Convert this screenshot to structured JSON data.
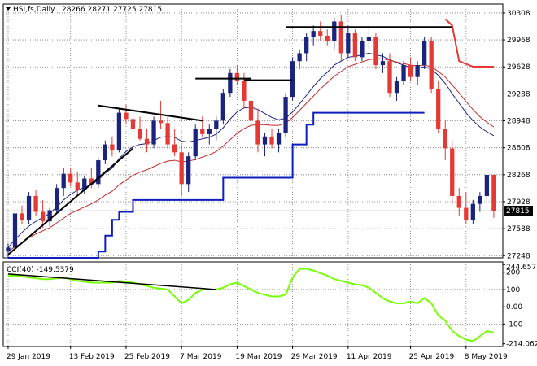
{
  "chart_data": [
    {
      "type": "candlestick",
      "title": "HSI,fs,Daily",
      "ohlc_label": "28266 28271 27725 27815",
      "current_price": "27815",
      "y_ticks": [
        "30308",
        "29968",
        "29628",
        "29288",
        "28948",
        "28608",
        "28268",
        "27928",
        "27588",
        "27248"
      ],
      "y_tick_values": [
        30308,
        29968,
        29628,
        29288,
        28948,
        28608,
        28268,
        27928,
        27588,
        27248
      ],
      "ylim": [
        27220,
        30420
      ],
      "x_ticks": [
        "29 Jan 2019",
        "13 Feb 2019",
        "25 Feb 2019",
        "7 Mar 2019",
        "19 Mar 2019",
        "29 Mar 2019",
        "11 Apr 2019",
        "25 Apr 2019",
        "8 May 2019"
      ],
      "x_tick_index": [
        0,
        9,
        17,
        25,
        33,
        41,
        49,
        58,
        66
      ],
      "up_color": "#1a237e",
      "down_color": "#e53935",
      "candles": [
        [
          27300,
          27400,
          27220,
          27350
        ],
        [
          27350,
          27850,
          27300,
          27780
        ],
        [
          27780,
          27880,
          27650,
          27700
        ],
        [
          27700,
          28050,
          27650,
          28000
        ],
        [
          28000,
          28080,
          27750,
          27800
        ],
        [
          27800,
          27950,
          27600,
          27680
        ],
        [
          27680,
          27850,
          27620,
          27820
        ],
        [
          27820,
          28150,
          27780,
          28100
        ],
        [
          28100,
          28350,
          28000,
          28280
        ],
        [
          28280,
          28360,
          28120,
          28170
        ],
        [
          28170,
          28300,
          28000,
          28080
        ],
        [
          28080,
          28250,
          28030,
          28220
        ],
        [
          28220,
          28350,
          28100,
          28150
        ],
        [
          28150,
          28480,
          28100,
          28450
        ],
        [
          28450,
          28700,
          28400,
          28650
        ],
        [
          28650,
          28750,
          28500,
          28580
        ],
        [
          28580,
          29100,
          28550,
          29050
        ],
        [
          29050,
          29150,
          28900,
          28970
        ],
        [
          28970,
          29050,
          28800,
          28850
        ],
        [
          28850,
          29000,
          28700,
          28720
        ],
        [
          28720,
          28850,
          28550,
          28650
        ],
        [
          28650,
          29000,
          28600,
          28950
        ],
        [
          28950,
          29200,
          28850,
          28920
        ],
        [
          28920,
          29000,
          28600,
          28650
        ],
        [
          28650,
          28850,
          28500,
          28550
        ],
        [
          28550,
          28650,
          28000,
          28150
        ],
        [
          28150,
          28550,
          28050,
          28500
        ],
        [
          28500,
          28900,
          28450,
          28850
        ],
        [
          28850,
          29000,
          28750,
          28780
        ],
        [
          28780,
          28900,
          28650,
          28850
        ],
        [
          28850,
          29000,
          28700,
          28950
        ],
        [
          28950,
          29350,
          28900,
          29300
        ],
        [
          29300,
          29600,
          29250,
          29550
        ],
        [
          29550,
          29650,
          29400,
          29450
        ],
        [
          29450,
          29550,
          29100,
          29200
        ],
        [
          29200,
          29350,
          28900,
          28950
        ],
        [
          28950,
          29100,
          28550,
          28650
        ],
        [
          28650,
          28800,
          28500,
          28750
        ],
        [
          28750,
          28850,
          28600,
          28650
        ],
        [
          28650,
          28850,
          28550,
          28800
        ],
        [
          28800,
          29300,
          28750,
          29250
        ],
        [
          29250,
          29750,
          29200,
          29700
        ],
        [
          29700,
          29850,
          29600,
          29800
        ],
        [
          29800,
          30050,
          29700,
          30000
        ],
        [
          30000,
          30150,
          29900,
          30080
        ],
        [
          30080,
          30200,
          29950,
          30020
        ],
        [
          30020,
          30100,
          29900,
          29950
        ],
        [
          29950,
          30250,
          29850,
          30200
        ],
        [
          30200,
          30280,
          29700,
          29800
        ],
        [
          29800,
          30150,
          29750,
          30050
        ],
        [
          30050,
          30100,
          29700,
          29750
        ],
        [
          29750,
          30000,
          29700,
          29950
        ],
        [
          29950,
          30150,
          29850,
          30000
        ],
        [
          30000,
          30050,
          29600,
          29650
        ],
        [
          29650,
          29800,
          29550,
          29700
        ],
        [
          29700,
          29800,
          29250,
          29300
        ],
        [
          29300,
          29500,
          29200,
          29450
        ],
        [
          29450,
          29700,
          29400,
          29650
        ],
        [
          29650,
          29750,
          29450,
          29500
        ],
        [
          29500,
          29700,
          29400,
          29650
        ],
        [
          29650,
          30000,
          29600,
          29950
        ],
        [
          29950,
          30000,
          29300,
          29350
        ],
        [
          29350,
          29450,
          28800,
          28850
        ],
        [
          28850,
          28950,
          28450,
          28600
        ],
        [
          28600,
          28700,
          27900,
          28000
        ],
        [
          28000,
          28100,
          27750,
          27850
        ],
        [
          27850,
          28050,
          27650,
          27700
        ],
        [
          27700,
          27950,
          27650,
          27900
        ],
        [
          27900,
          28050,
          27800,
          28000
        ],
        [
          28000,
          28300,
          27900,
          28266
        ],
        [
          28266,
          28271,
          27725,
          27815
        ]
      ],
      "overlays": [
        {
          "name": "fast MA",
          "color": "#1a237e",
          "values": [
            27350,
            27450,
            27540,
            27620,
            27680,
            27730,
            27780,
            27860,
            27950,
            28020,
            28070,
            28110,
            28140,
            28200,
            28290,
            28350,
            28470,
            28560,
            28620,
            28650,
            28660,
            28700,
            28740,
            28750,
            28740,
            28690,
            28680,
            28700,
            28720,
            28740,
            28780,
            28860,
            28970,
            29060,
            29110,
            29120,
            29090,
            29040,
            28990,
            28960,
            28980,
            29060,
            29160,
            29270,
            29380,
            29480,
            29560,
            29650,
            29700,
            29750,
            29760,
            29780,
            29800,
            29780,
            29760,
            29720,
            29680,
            29650,
            29620,
            29610,
            29630,
            29600,
            29520,
            29420,
            29290,
            29170,
            29050,
            28950,
            28870,
            28810,
            28760
          ]
        },
        {
          "name": "slow MA",
          "color": "#c62828",
          "values": [
            27300,
            27360,
            27410,
            27470,
            27520,
            27560,
            27600,
            27660,
            27720,
            27780,
            27820,
            27860,
            27900,
            27950,
            28010,
            28060,
            28140,
            28200,
            28260,
            28300,
            28330,
            28370,
            28410,
            28440,
            28450,
            28430,
            28440,
            28460,
            28490,
            28520,
            28560,
            28630,
            28710,
            28790,
            28850,
            28890,
            28900,
            28900,
            28890,
            28890,
            28920,
            28990,
            29080,
            29170,
            29260,
            29350,
            29430,
            29510,
            29570,
            29630,
            29660,
            29690,
            29720,
            29730,
            29730,
            29710,
            29690,
            29670,
            29650,
            29640,
            29650,
            29630,
            29570,
            29500,
            29400,
            29300,
            29190,
            29090,
            29000,
            28930,
            28870
          ]
        },
        {
          "name": "step support",
          "color": "#0d1fbf",
          "values": [
            27220,
            27220,
            27220,
            27220,
            27220,
            27220,
            27220,
            27220,
            27220,
            27220,
            27220,
            27220,
            27220,
            27300,
            27500,
            27700,
            27800,
            27800,
            27950,
            27950,
            27950,
            27950,
            27950,
            27950,
            27950,
            27950,
            27950,
            27950,
            27950,
            27950,
            27950,
            28230,
            28230,
            28230,
            28230,
            28230,
            28230,
            28230,
            28230,
            28230,
            28230,
            28650,
            28650,
            28900,
            29050,
            29050,
            29050,
            29050,
            29050,
            29050,
            29050,
            29050,
            29050,
            29050,
            29050,
            29050,
            29050,
            29050,
            29050,
            29050,
            29050,
            null,
            null,
            null,
            null,
            null,
            null,
            null,
            null,
            null,
            null
          ]
        }
      ],
      "trendlines": [
        {
          "color": "#000000",
          "points": [
            [
              0,
              27260
            ],
            [
              18,
              28600
            ]
          ]
        },
        {
          "color": "#000000",
          "points": [
            [
              13,
              29140
            ],
            [
              28,
              28950
            ]
          ]
        },
        {
          "color": "#000000",
          "points": [
            [
              27,
              29480
            ],
            [
              35,
              29480
            ]
          ]
        },
        {
          "color": "#000000",
          "points": [
            [
              34,
              29460
            ],
            [
              41,
              29460
            ]
          ]
        },
        {
          "color": "#000000",
          "points": [
            [
              40,
              30130
            ],
            [
              64,
              30130
            ]
          ]
        }
      ],
      "resistance_line": {
        "color": "#e53935",
        "points": [
          [
            63,
            30230
          ],
          [
            64,
            30150
          ],
          [
            65,
            29700
          ],
          [
            67,
            29630
          ],
          [
            70,
            29630
          ]
        ]
      }
    },
    {
      "type": "line",
      "title": "CCI(40) -149.5379",
      "y_ticks": [
        "244.6572",
        "200",
        "100",
        "0.00",
        "-100",
        "-214.0621"
      ],
      "y_tick_values": [
        244.6572,
        200,
        100,
        0,
        -100,
        -214.0621
      ],
      "ylim": [
        -230,
        260
      ],
      "series": [
        {
          "color": "#76ff03",
          "values": [
            180,
            180,
            175,
            170,
            165,
            160,
            160,
            165,
            170,
            160,
            150,
            145,
            140,
            140,
            140,
            140,
            150,
            145,
            140,
            130,
            120,
            110,
            105,
            100,
            60,
            20,
            40,
            80,
            100,
            100,
            100,
            110,
            130,
            140,
            120,
            100,
            80,
            70,
            60,
            60,
            70,
            170,
            220,
            220,
            210,
            195,
            180,
            160,
            150,
            140,
            130,
            125,
            110,
            80,
            50,
            30,
            20,
            20,
            30,
            20,
            50,
            20,
            -50,
            -80,
            -140,
            -170,
            -190,
            -200,
            -170,
            -140,
            -149.5379
          ]
        }
      ],
      "trendline": {
        "color": "#000000",
        "points": [
          [
            0,
            190
          ],
          [
            30,
            100
          ]
        ]
      },
      "dashed_levels": [
        100,
        -100
      ]
    }
  ]
}
